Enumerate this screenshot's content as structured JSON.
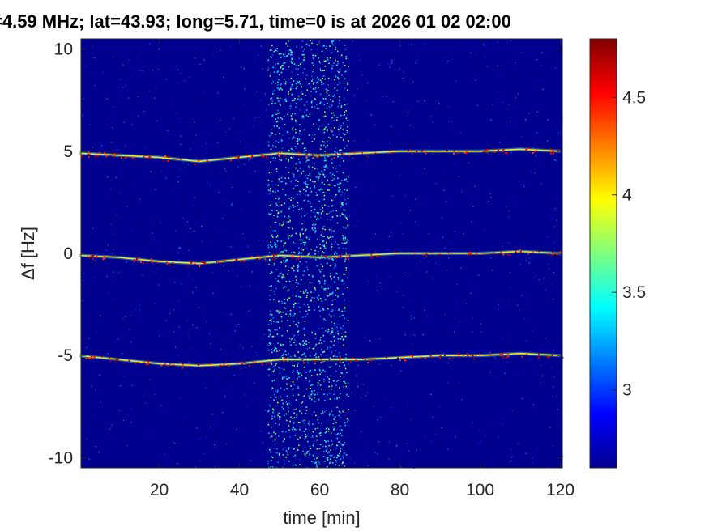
{
  "chart_data": {
    "type": "heatmap",
    "title": "=4.59 MHz;  lat=43.93; long=5.71, time=0 is at 2026 01 02 02:00",
    "xlabel": "time [min]",
    "ylabel": "Δf [Hz]",
    "xlim": [
      0.5,
      120.5
    ],
    "ylim": [
      -10.5,
      10.5
    ],
    "xticks": [
      20,
      40,
      60,
      80,
      100,
      120
    ],
    "xtick_labels": [
      "20",
      "40",
      "60",
      "80",
      "100",
      "120"
    ],
    "yticks": [
      10,
      5,
      0,
      -5,
      -10
    ],
    "ytick_labels": [
      "10",
      "5",
      "0",
      "-5",
      "-10"
    ],
    "colorbar": {
      "range": [
        2.6,
        4.8
      ],
      "ticks": [
        4.5,
        4,
        3.5,
        3
      ],
      "tick_labels": [
        "4.5",
        "4",
        "3.5",
        "3"
      ],
      "colormap": "jet"
    },
    "traces": [
      {
        "label_offset": 5,
        "t": [
          0,
          10,
          20,
          30,
          40,
          50,
          60,
          70,
          80,
          90,
          100,
          110,
          120
        ],
        "df": [
          4.9,
          4.8,
          4.7,
          4.5,
          4.7,
          4.9,
          4.8,
          4.9,
          5.0,
          5.0,
          5.0,
          5.1,
          5.0
        ]
      },
      {
        "label_offset": 0,
        "t": [
          0,
          10,
          20,
          30,
          40,
          50,
          60,
          70,
          80,
          90,
          100,
          110,
          120
        ],
        "df": [
          -0.1,
          -0.2,
          -0.4,
          -0.5,
          -0.3,
          -0.1,
          -0.2,
          -0.1,
          0.0,
          0.0,
          0.0,
          0.1,
          0.0
        ]
      },
      {
        "label_offset": -5,
        "t": [
          0,
          10,
          20,
          30,
          40,
          50,
          60,
          70,
          80,
          90,
          100,
          110,
          120
        ],
        "df": [
          -5.0,
          -5.2,
          -5.4,
          -5.5,
          -5.4,
          -5.2,
          -5.2,
          -5.2,
          -5.1,
          -5.0,
          -5.0,
          -4.9,
          -5.0
        ]
      }
    ],
    "noise_band": {
      "t_start": 47,
      "t_end": 67
    }
  }
}
